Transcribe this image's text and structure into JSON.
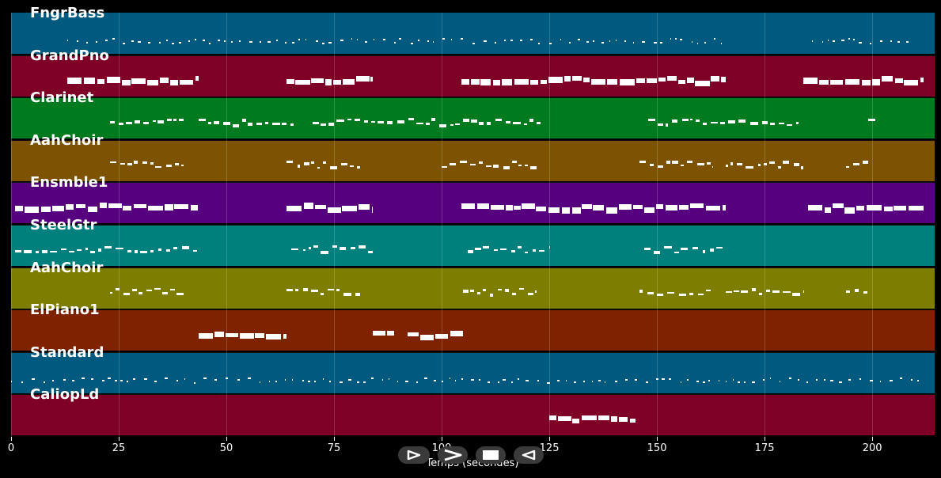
{
  "chart_data": {
    "type": "piano-roll",
    "xlabel": "Temps (secondes)",
    "xlim": [
      0,
      214.5
    ],
    "xticks": [
      0,
      25,
      50,
      75,
      100,
      125,
      150,
      175,
      200
    ],
    "tracks": [
      {
        "name": "FngrBass",
        "color": "#005a80",
        "density": "sparse",
        "segments": [
          [
            13,
            165
          ],
          [
            186,
            210
          ]
        ]
      },
      {
        "name": "GrandPno",
        "color": "#7e0027",
        "density": "thick",
        "segments": [
          [
            13,
            43.5
          ],
          [
            64,
            84
          ],
          [
            104.5,
            166
          ],
          [
            184,
            212
          ]
        ]
      },
      {
        "name": "Clarinet",
        "color": "#007a1f",
        "density": "thin",
        "segments": [
          [
            23,
            40
          ],
          [
            43.5,
            66
          ],
          [
            70,
            123
          ],
          [
            148,
            183
          ],
          [
            199,
            201
          ]
        ]
      },
      {
        "name": "AahChoir",
        "color": "#7d5200",
        "density": "thin",
        "segments": [
          [
            23,
            40
          ],
          [
            64,
            81
          ],
          [
            100,
            122
          ],
          [
            146,
            163
          ],
          [
            166,
            184
          ],
          [
            194,
            199
          ]
        ]
      },
      {
        "name": "Ensmble1",
        "color": "#560080",
        "density": "thick",
        "segments": [
          [
            1,
            43.5
          ],
          [
            64,
            84
          ],
          [
            104.5,
            166
          ],
          [
            185,
            212
          ]
        ]
      },
      {
        "name": "SteelGtr",
        "color": "#00807d",
        "density": "thin",
        "segments": [
          [
            1,
            43.5
          ],
          [
            65,
            84
          ],
          [
            106,
            125
          ],
          [
            147,
            166
          ]
        ]
      },
      {
        "name": "AahChoir",
        "color": "#7d7d00",
        "density": "thin",
        "segments": [
          [
            23,
            40
          ],
          [
            64,
            81
          ],
          [
            105,
            122
          ],
          [
            146,
            163
          ],
          [
            166,
            184
          ],
          [
            194,
            199
          ]
        ]
      },
      {
        "name": "ElPiano1",
        "color": "#7e2200",
        "density": "thick",
        "segments": [
          [
            43.5,
            64
          ],
          [
            84,
            89
          ],
          [
            92,
            105
          ]
        ]
      },
      {
        "name": "Standard",
        "color": "#005a80",
        "density": "sparse",
        "segments": [
          [
            0,
            212
          ]
        ]
      },
      {
        "name": "CaliopLd",
        "color": "#7e0027",
        "density": "thick",
        "segments": [
          [
            125,
            145
          ]
        ]
      }
    ]
  },
  "controls": {
    "labels": [
      "play-icon",
      "fast-forward-icon",
      "stop-icon",
      "rewind-icon"
    ]
  }
}
